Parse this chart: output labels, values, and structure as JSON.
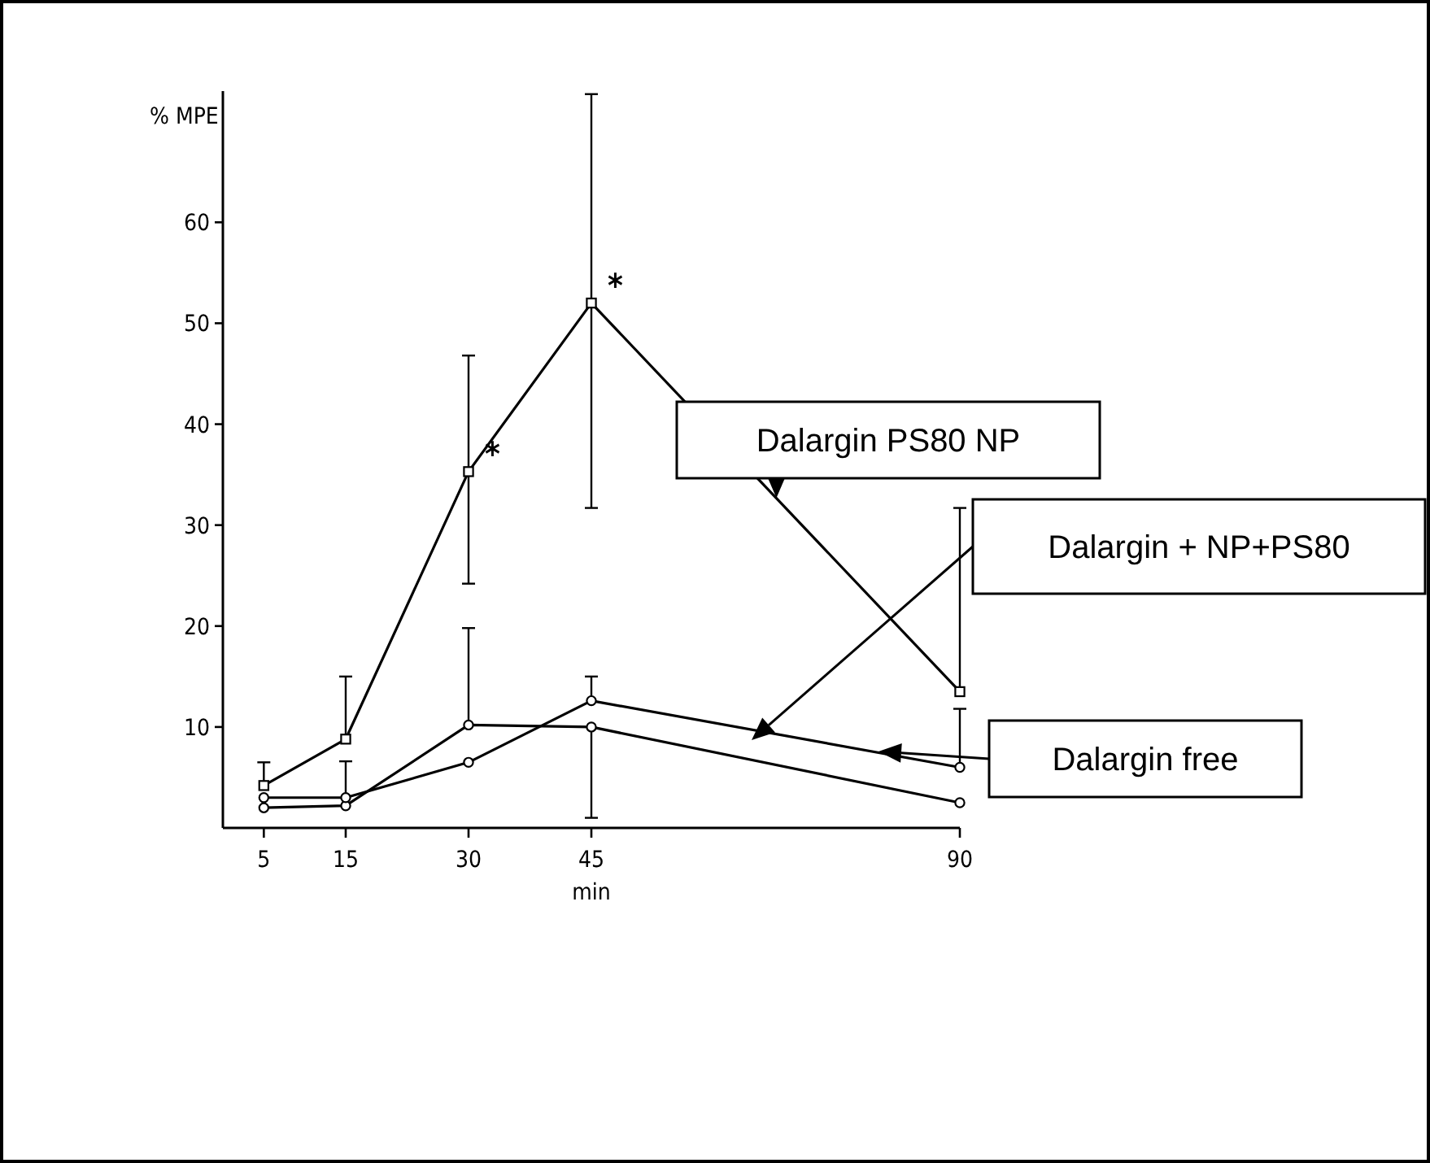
{
  "chart_data": {
    "type": "line",
    "ylabel": "% MPE",
    "xlabel": "min",
    "x": [
      5,
      15,
      30,
      45,
      90
    ],
    "xlim": [
      0,
      90
    ],
    "ylim": [
      0,
      73
    ],
    "xticks": [
      5,
      15,
      30,
      45,
      90
    ],
    "yticks": [
      10,
      20,
      30,
      40,
      50,
      60
    ],
    "grid": false,
    "line_style": "solid",
    "series": [
      {
        "color": "#000000",
        "marker": "square",
        "values": [
          4.2,
          8.8,
          35.3,
          52,
          13.5
        ],
        "errors": [
          [
            4.2,
            6.5
          ],
          [
            8.8,
            15
          ],
          [
            24.2,
            46.8
          ],
          [
            31.7,
            72.7
          ],
          [
            13.5,
            31.7
          ]
        ]
      },
      {
        "color": "#000000",
        "marker": "circle",
        "values": [
          3,
          3,
          6.5,
          12.6,
          6
        ],
        "errors": [
          null,
          [
            3,
            6.6
          ],
          null,
          [
            12.6,
            15
          ],
          [
            6,
            11.8
          ]
        ]
      },
      {
        "color": "#000000",
        "marker": "circle",
        "values": [
          2,
          2.2,
          10.2,
          10,
          2.5
        ],
        "errors": [
          null,
          null,
          [
            10.2,
            19.8
          ],
          [
            1,
            10
          ],
          null
        ]
      }
    ],
    "annotations": [
      {
        "text": "*",
        "x": 30,
        "y": 35.3
      },
      {
        "text": "*",
        "x": 45,
        "y": 52
      },
      {
        "text": "Dalargin PS80 NP",
        "x": 67.6,
        "y": 32.7
      },
      "Dalargin + NP+PS80",
      "Dalargin free"
    ]
  }
}
